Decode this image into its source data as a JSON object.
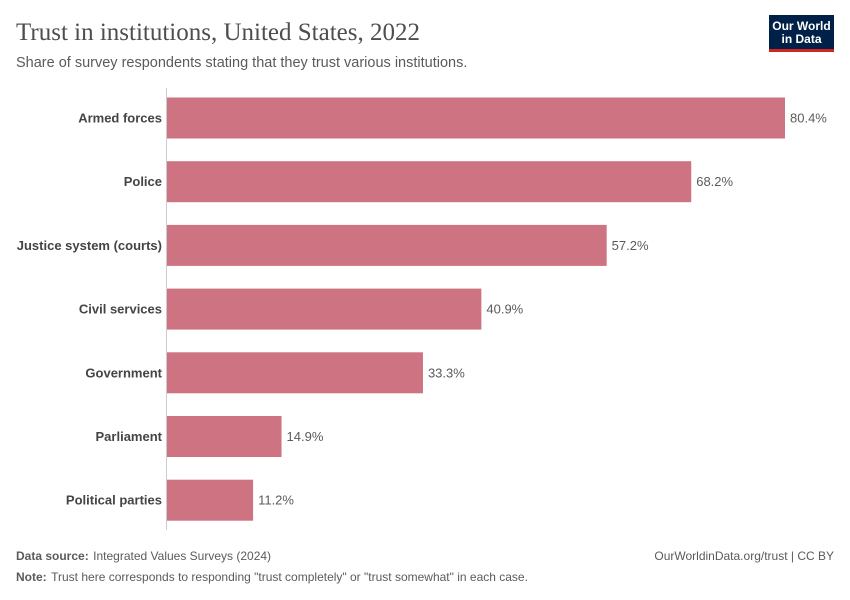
{
  "chart_data": {
    "type": "bar",
    "orientation": "horizontal",
    "title": "Trust in institutions, United States, 2022",
    "subtitle": "Share of survey respondents stating that they trust various institutions.",
    "categories": [
      "Armed forces",
      "Police",
      "Justice system (courts)",
      "Civil services",
      "Government",
      "Parliament",
      "Political parties"
    ],
    "values": [
      80.4,
      68.2,
      57.2,
      40.9,
      33.3,
      14.9,
      11.2
    ],
    "value_labels": [
      "80.4%",
      "68.2%",
      "57.2%",
      "40.9%",
      "33.3%",
      "14.9%",
      "11.2%"
    ],
    "color": "#ce7382"
  },
  "logo": [
    "Our World",
    "in Data"
  ],
  "footer": {
    "source_label": "Data source:",
    "source": "Integrated Values Surveys (2024)",
    "url": "OurWorldinData.org/trust | CC BY",
    "note_label": "Note:",
    "note": "Trust here corresponds to responding \"trust completely\" or \"trust somewhat\" in each case."
  }
}
